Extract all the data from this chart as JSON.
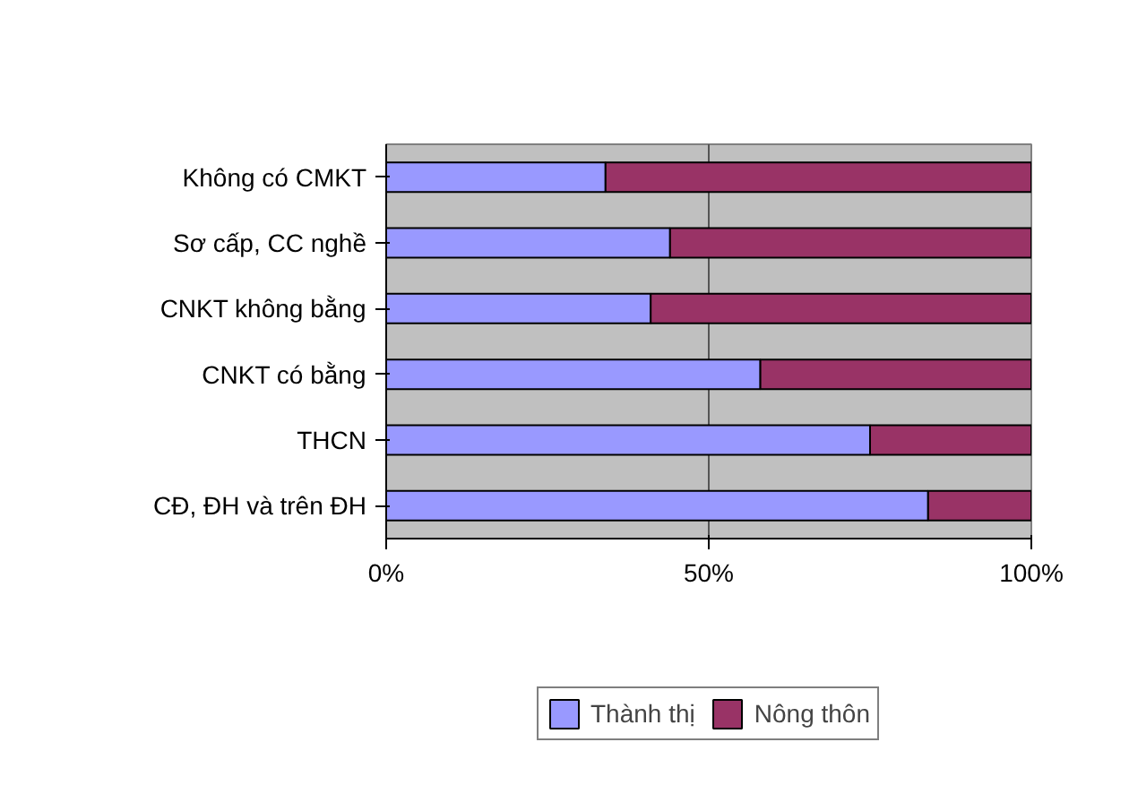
{
  "chart_data": {
    "type": "bar",
    "orientation": "horizontal",
    "stacked": true,
    "categories": [
      "Không có CMKT",
      "Sơ cấp, CC nghề",
      "CNKT không bằng",
      "CNKT có bằng",
      "THCN",
      "CĐ, ĐH và trên ĐH"
    ],
    "series": [
      {
        "name": "Thành thị",
        "color": "#9999ff",
        "values": [
          34,
          44,
          41,
          58,
          75,
          84
        ]
      },
      {
        "name": "Nông thôn",
        "color": "#993366",
        "values": [
          66,
          56,
          59,
          42,
          25,
          16
        ]
      }
    ],
    "xlim": [
      0,
      100
    ],
    "xticks": [
      {
        "value": 0,
        "label": "0%"
      },
      {
        "value": 50,
        "label": "50%"
      },
      {
        "value": 100,
        "label": "100%"
      }
    ],
    "grid": "x",
    "legend": "bottom"
  }
}
